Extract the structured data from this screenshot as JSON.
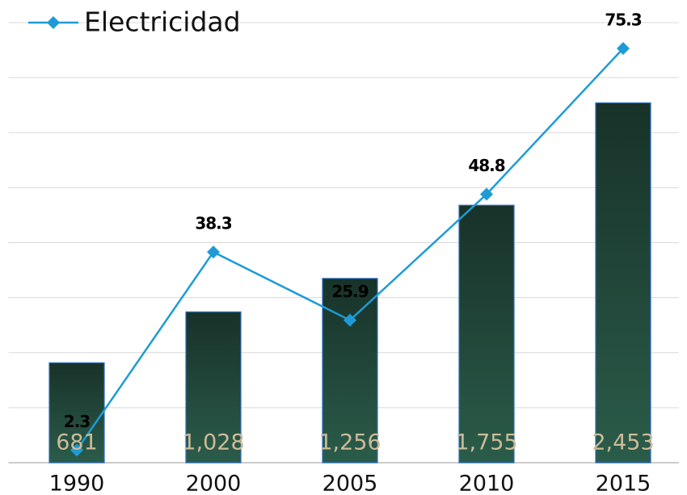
{
  "chart_data": {
    "type": "bar",
    "categories": [
      "1990",
      "2000",
      "2005",
      "2010",
      "2015"
    ],
    "series": [
      {
        "type": "bar",
        "color": "#1b3a30",
        "values": [
          681,
          1028,
          1256,
          1755,
          2453
        ],
        "value_labels": [
          "681",
          "1,028",
          "1,256",
          "1,755",
          "2,453"
        ]
      },
      {
        "type": "line",
        "name": "Electricidad",
        "color": "#1e9bd7",
        "axis": "y2",
        "values": [
          2.3,
          38.3,
          25.9,
          48.8,
          75.3
        ]
      }
    ],
    "ylim": [
      0,
      3000
    ],
    "yticks": [
      0,
      375,
      750,
      1125,
      1500,
      1875,
      2250,
      2625,
      3000
    ],
    "y2lim": [
      0,
      80
    ],
    "grid": true,
    "legend": "top-left"
  }
}
